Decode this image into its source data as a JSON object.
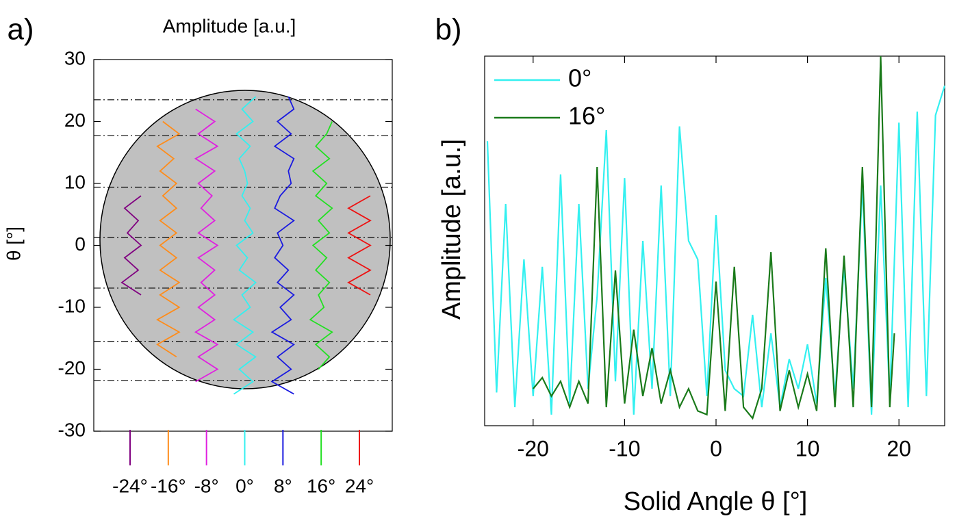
{
  "chart_data": [
    {
      "type": "trace_stack",
      "panel_label": "a)",
      "title": "Amplitude [a.u.]",
      "y_label": "θ [°]",
      "ylim": [
        -30,
        30
      ],
      "yticks": [
        -30,
        -20,
        -10,
        0,
        10,
        20,
        30
      ],
      "reference_lines": [
        23.5,
        17.7,
        9.4,
        1.3,
        -6.9,
        -15.5,
        -21.8
      ],
      "y": [
        -24,
        -22,
        -20,
        -18,
        -16,
        -14,
        -12,
        -10,
        -8,
        -6,
        -4,
        -2,
        0,
        2,
        4,
        6,
        8,
        10,
        12,
        14,
        16,
        18,
        20,
        22,
        24
      ],
      "series": [
        {
          "name": "-24°",
          "color": "#800080",
          "values": [
            null,
            null,
            null,
            null,
            null,
            null,
            null,
            null,
            0.9,
            0.2,
            0.8,
            0.3,
            0.9,
            0.4,
            0.8,
            0.3,
            0.9,
            null,
            null,
            null,
            null,
            null,
            null,
            null,
            null
          ]
        },
        {
          "name": "-16°",
          "color": "#ff8c1a",
          "values": [
            null,
            null,
            null,
            0.8,
            0.1,
            0.9,
            0.1,
            0.9,
            0.2,
            0.9,
            0.2,
            0.8,
            0.2,
            0.8,
            0.2,
            0.8,
            0.3,
            0.8,
            0.2,
            0.7,
            0.1,
            0.9,
            0.3,
            null,
            null
          ]
        },
        {
          "name": "-8°",
          "color": "#e020e0",
          "values": [
            null,
            0.1,
            0.9,
            0.2,
            0.9,
            0.1,
            0.8,
            0.2,
            0.8,
            0.3,
            0.8,
            0.2,
            0.9,
            0.2,
            0.8,
            0.3,
            0.7,
            0.2,
            0.8,
            0.1,
            0.9,
            0.2,
            0.8,
            0.1,
            null
          ]
        },
        {
          "name": "0°",
          "color": "#33f0f0",
          "values": [
            0.1,
            0.8,
            0.3,
            0.9,
            0.2,
            0.8,
            0.1,
            0.7,
            0.4,
            0.9,
            0.3,
            0.6,
            0.2,
            0.8,
            0.5,
            0.7,
            0.4,
            0.6,
            0.5,
            0.3,
            0.7,
            0.2,
            0.8,
            0.4,
            0.9
          ]
        },
        {
          "name": "8°",
          "color": "#1a1ae0",
          "values": [
            0.9,
            0.1,
            0.8,
            0.3,
            0.9,
            0.1,
            0.8,
            0.4,
            0.9,
            0.3,
            0.7,
            0.2,
            0.5,
            0.3,
            0.9,
            0.2,
            0.4,
            0.8,
            0.7,
            0.9,
            0.2,
            0.8,
            0.3,
            0.9,
            0.7
          ]
        },
        {
          "name": "16°",
          "color": "#22e022",
          "values": [
            null,
            null,
            0.4,
            0.8,
            0.3,
            0.9,
            0.1,
            0.6,
            0.4,
            0.8,
            0.3,
            0.7,
            0.2,
            0.8,
            0.4,
            0.9,
            0.3,
            0.7,
            0.2,
            0.8,
            0.3,
            0.7,
            0.9,
            null,
            null
          ]
        },
        {
          "name": "24°",
          "color": "#ee1111",
          "values": [
            null,
            null,
            null,
            null,
            null,
            null,
            null,
            null,
            0.9,
            0.1,
            0.9,
            0.1,
            0.9,
            0.1,
            0.9,
            0.1,
            0.9,
            null,
            null,
            null,
            null,
            null,
            null,
            null,
            null
          ]
        }
      ]
    },
    {
      "type": "line",
      "panel_label": "b)",
      "x_label": "Solid Angle θ [°]",
      "y_label": "Amplitude [a.u.]",
      "xlim": [
        -25,
        25
      ],
      "xticks": [
        -20,
        -10,
        0,
        10,
        20
      ],
      "ylim": [
        0,
        1
      ],
      "legend": "upper left",
      "series": [
        {
          "name": "0°",
          "color": "#33f0f0",
          "x": [
            -25,
            -24,
            -23,
            -22,
            -21,
            -20,
            -19,
            -18,
            -17,
            -16,
            -15,
            -14,
            -13,
            -12,
            -11,
            -10,
            -9,
            -8,
            -7,
            -6,
            -5,
            -4,
            -3,
            -2,
            -1,
            0,
            1,
            2,
            3,
            4,
            5,
            6,
            7,
            8,
            9,
            10,
            11,
            12,
            13,
            14,
            15,
            16,
            17,
            18,
            19,
            20,
            21,
            22,
            23,
            24,
            25
          ],
          "values": [
            0.77,
            0.09,
            0.6,
            0.05,
            0.45,
            0.08,
            0.43,
            0.03,
            0.68,
            0.06,
            0.6,
            0.1,
            0.35,
            0.8,
            0.12,
            0.67,
            0.03,
            0.5,
            0.1,
            0.65,
            0.08,
            0.81,
            0.5,
            0.45,
            0.08,
            0.57,
            0.15,
            0.1,
            0.08,
            0.3,
            0.05,
            0.25,
            0.05,
            0.18,
            0.1,
            0.22,
            0.06,
            0.4,
            0.08,
            0.43,
            0.1,
            0.65,
            0.03,
            0.65,
            0.07,
            0.82,
            0.05,
            0.85,
            0.08,
            0.84,
            0.92
          ]
        },
        {
          "name": "16°",
          "color": "#1a7a1a",
          "x": [
            -20,
            -19,
            -18,
            -17,
            -16,
            -15,
            -14,
            -13,
            -12,
            -11,
            -10,
            -9,
            -8,
            -7,
            -6,
            -5,
            -4,
            -3,
            -2,
            -1,
            0,
            1,
            2,
            3,
            4,
            5,
            6,
            7,
            8,
            9,
            10,
            11,
            12,
            13,
            14,
            15,
            16,
            17,
            18,
            19,
            19.5
          ],
          "values": [
            0.1,
            0.13,
            0.08,
            0.12,
            0.05,
            0.12,
            0.06,
            0.7,
            0.05,
            0.42,
            0.06,
            0.26,
            0.08,
            0.21,
            0.06,
            0.15,
            0.05,
            0.1,
            0.04,
            0.03,
            0.39,
            0.04,
            0.43,
            0.05,
            0.02,
            0.1,
            0.47,
            0.04,
            0.15,
            0.05,
            0.14,
            0.04,
            0.48,
            0.05,
            0.46,
            0.05,
            0.7,
            0.05,
            1.0,
            0.05,
            0.25
          ]
        }
      ]
    }
  ]
}
